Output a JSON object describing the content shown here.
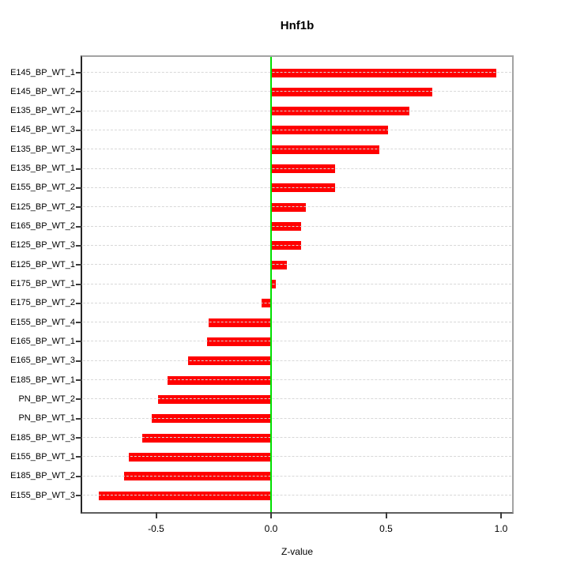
{
  "figure": {
    "title": "Hnf1b"
  },
  "chart_data": {
    "type": "bar",
    "orientation": "horizontal",
    "title": "Hnf1b",
    "xlabel": "Z-value",
    "ylabel": "",
    "xlim": [
      -0.82,
      1.05
    ],
    "x_ticks": [
      -0.5,
      0.0,
      0.5,
      1.0
    ],
    "x_tick_labels": [
      "-0.5",
      "0.0",
      "0.5",
      "1.0"
    ],
    "grid": "dashed horizontal line per category, drawn over bars",
    "zero_line_at": 0.0,
    "legend": "none",
    "categories": [
      "E145_BP_WT_1",
      "E145_BP_WT_2",
      "E135_BP_WT_2",
      "E145_BP_WT_3",
      "E135_BP_WT_3",
      "E135_BP_WT_1",
      "E155_BP_WT_2",
      "E125_BP_WT_2",
      "E165_BP_WT_2",
      "E125_BP_WT_3",
      "E125_BP_WT_1",
      "E175_BP_WT_1",
      "E175_BP_WT_2",
      "E155_BP_WT_4",
      "E165_BP_WT_1",
      "E165_BP_WT_3",
      "E185_BP_WT_1",
      "PN_BP_WT_2",
      "PN_BP_WT_1",
      "E185_BP_WT_3",
      "E155_BP_WT_1",
      "E185_BP_WT_2",
      "E155_BP_WT_3"
    ],
    "values": [
      0.98,
      0.7,
      0.6,
      0.51,
      0.47,
      0.28,
      0.28,
      0.15,
      0.13,
      0.13,
      0.07,
      0.02,
      -0.04,
      -0.27,
      -0.28,
      -0.36,
      -0.45,
      -0.49,
      -0.52,
      -0.56,
      -0.62,
      -0.64,
      -0.75
    ],
    "colors": {
      "bar": "#ff0000",
      "zero_line": "#00e100",
      "grid": "#d8d8d8",
      "box": "#a3a3a3",
      "axis": "#3a3a3a",
      "text": "#000000"
    }
  }
}
